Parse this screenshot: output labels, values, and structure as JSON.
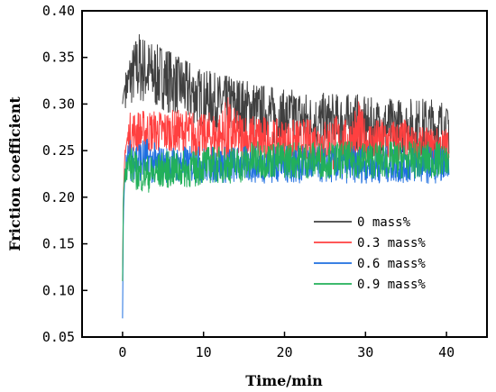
{
  "chart_data": {
    "type": "line",
    "xlabel": "Time/min",
    "ylabel": "Friction coefficient",
    "xlim": [
      -5,
      45
    ],
    "ylim": [
      0.05,
      0.4
    ],
    "xticks": [
      0,
      10,
      20,
      30,
      40
    ],
    "yticks": [
      0.05,
      0.1,
      0.15,
      0.2,
      0.25,
      0.3,
      0.35,
      0.4
    ],
    "xtick_labels": [
      "0",
      "10",
      "20",
      "30",
      "40"
    ],
    "ytick_labels": [
      "0.05",
      "0.10",
      "0.15",
      "0.20",
      "0.25",
      "0.30",
      "0.35",
      "0.40"
    ],
    "grid": false,
    "legend_position": "lower-right",
    "series": [
      {
        "name": "0 mass%",
        "color": "#404040",
        "x": [
          0,
          0.1,
          0.3,
          0.6,
          1,
          2,
          3,
          4,
          5,
          6,
          7,
          8,
          9,
          10,
          11,
          12,
          13,
          14,
          15,
          16,
          17,
          18,
          19,
          20,
          21,
          22,
          23,
          24,
          25,
          26,
          27,
          28,
          29,
          30,
          31,
          32,
          33,
          34,
          35,
          36,
          37,
          38,
          39,
          40.3
        ],
        "y": [
          0.3,
          0.31,
          0.32,
          0.32,
          0.33,
          0.34,
          0.335,
          0.33,
          0.33,
          0.325,
          0.32,
          0.315,
          0.31,
          0.305,
          0.305,
          0.3,
          0.3,
          0.3,
          0.295,
          0.295,
          0.29,
          0.29,
          0.285,
          0.285,
          0.285,
          0.285,
          0.28,
          0.28,
          0.28,
          0.28,
          0.28,
          0.28,
          0.28,
          0.275,
          0.275,
          0.275,
          0.275,
          0.275,
          0.275,
          0.275,
          0.275,
          0.275,
          0.275,
          0.275
        ],
        "range_low": [
          0.29,
          0.29,
          0.29,
          0.29,
          0.29,
          0.29,
          0.29,
          0.285,
          0.285,
          0.28,
          0.28,
          0.27,
          0.27,
          0.265,
          0.265,
          0.26,
          0.26,
          0.26,
          0.255,
          0.255,
          0.25,
          0.25,
          0.245,
          0.245,
          0.245,
          0.245,
          0.24,
          0.24,
          0.24,
          0.24,
          0.24,
          0.24,
          0.24,
          0.235,
          0.235,
          0.235,
          0.235,
          0.235,
          0.235,
          0.235,
          0.235,
          0.235,
          0.235,
          0.235
        ],
        "range_high": [
          0.31,
          0.33,
          0.33,
          0.34,
          0.35,
          0.38,
          0.37,
          0.365,
          0.36,
          0.355,
          0.35,
          0.345,
          0.34,
          0.335,
          0.335,
          0.33,
          0.33,
          0.33,
          0.325,
          0.325,
          0.32,
          0.32,
          0.315,
          0.315,
          0.315,
          0.315,
          0.31,
          0.315,
          0.315,
          0.31,
          0.31,
          0.31,
          0.31,
          0.31,
          0.31,
          0.31,
          0.31,
          0.31,
          0.31,
          0.31,
          0.31,
          0.31,
          0.31,
          0.29
        ]
      },
      {
        "name": "0.3 mass%",
        "color": "#ff4040",
        "x": [
          0,
          0.1,
          0.3,
          0.6,
          1,
          2,
          3,
          4,
          5,
          6,
          7,
          8,
          9,
          10,
          11,
          12,
          13,
          14,
          15,
          16,
          17,
          18,
          19,
          20,
          21,
          22,
          23,
          24,
          25,
          26,
          27,
          28,
          29,
          30,
          31,
          32,
          33,
          34,
          35,
          36,
          37,
          38,
          39,
          40.3
        ],
        "y": [
          0.11,
          0.2,
          0.25,
          0.26,
          0.27,
          0.27,
          0.27,
          0.27,
          0.27,
          0.27,
          0.27,
          0.27,
          0.265,
          0.265,
          0.265,
          0.265,
          0.265,
          0.265,
          0.265,
          0.26,
          0.26,
          0.26,
          0.26,
          0.26,
          0.26,
          0.26,
          0.26,
          0.26,
          0.26,
          0.26,
          0.26,
          0.26,
          0.26,
          0.26,
          0.26,
          0.26,
          0.26,
          0.26,
          0.26,
          0.255,
          0.255,
          0.255,
          0.255,
          0.255
        ],
        "range_low": [
          0.11,
          0.19,
          0.23,
          0.24,
          0.25,
          0.25,
          0.25,
          0.25,
          0.25,
          0.25,
          0.25,
          0.25,
          0.245,
          0.245,
          0.24,
          0.24,
          0.24,
          0.24,
          0.24,
          0.235,
          0.235,
          0.235,
          0.235,
          0.235,
          0.235,
          0.23,
          0.23,
          0.23,
          0.23,
          0.23,
          0.23,
          0.23,
          0.23,
          0.23,
          0.23,
          0.23,
          0.23,
          0.23,
          0.23,
          0.23,
          0.23,
          0.23,
          0.23,
          0.23
        ],
        "range_high": [
          0.12,
          0.23,
          0.27,
          0.28,
          0.3,
          0.3,
          0.3,
          0.3,
          0.3,
          0.3,
          0.3,
          0.3,
          0.3,
          0.295,
          0.3,
          0.3,
          0.32,
          0.3,
          0.3,
          0.295,
          0.3,
          0.29,
          0.29,
          0.29,
          0.29,
          0.29,
          0.29,
          0.29,
          0.29,
          0.3,
          0.29,
          0.29,
          0.32,
          0.29,
          0.29,
          0.29,
          0.29,
          0.29,
          0.29,
          0.28,
          0.28,
          0.28,
          0.28,
          0.27
        ]
      },
      {
        "name": "0.6 mass%",
        "color": "#1f6fe0",
        "x": [
          0,
          0.1,
          0.3,
          0.6,
          1,
          2,
          3,
          4,
          5,
          6,
          7,
          8,
          9,
          10,
          11,
          12,
          13,
          14,
          15,
          16,
          17,
          18,
          19,
          20,
          21,
          22,
          23,
          24,
          25,
          26,
          27,
          28,
          29,
          30,
          31,
          32,
          33,
          34,
          35,
          36,
          37,
          38,
          39,
          40.3
        ],
        "y": [
          0.07,
          0.18,
          0.23,
          0.24,
          0.24,
          0.24,
          0.24,
          0.235,
          0.235,
          0.235,
          0.235,
          0.235,
          0.235,
          0.235,
          0.235,
          0.235,
          0.235,
          0.235,
          0.235,
          0.235,
          0.235,
          0.235,
          0.235,
          0.235,
          0.235,
          0.235,
          0.235,
          0.235,
          0.235,
          0.235,
          0.235,
          0.235,
          0.235,
          0.235,
          0.235,
          0.235,
          0.235,
          0.235,
          0.235,
          0.235,
          0.235,
          0.235,
          0.235,
          0.235
        ],
        "range_low": [
          0.07,
          0.16,
          0.21,
          0.22,
          0.21,
          0.21,
          0.21,
          0.21,
          0.21,
          0.21,
          0.21,
          0.21,
          0.21,
          0.21,
          0.21,
          0.21,
          0.21,
          0.21,
          0.21,
          0.21,
          0.21,
          0.21,
          0.21,
          0.21,
          0.21,
          0.21,
          0.21,
          0.21,
          0.21,
          0.21,
          0.21,
          0.21,
          0.21,
          0.21,
          0.21,
          0.21,
          0.21,
          0.21,
          0.21,
          0.21,
          0.21,
          0.21,
          0.21,
          0.22
        ],
        "range_high": [
          0.08,
          0.22,
          0.25,
          0.26,
          0.265,
          0.265,
          0.265,
          0.265,
          0.26,
          0.26,
          0.26,
          0.26,
          0.26,
          0.26,
          0.26,
          0.26,
          0.26,
          0.26,
          0.26,
          0.26,
          0.26,
          0.26,
          0.26,
          0.26,
          0.26,
          0.26,
          0.26,
          0.26,
          0.26,
          0.26,
          0.26,
          0.26,
          0.26,
          0.26,
          0.26,
          0.26,
          0.26,
          0.26,
          0.26,
          0.26,
          0.26,
          0.26,
          0.26,
          0.24
        ]
      },
      {
        "name": "0.9 mass%",
        "color": "#22b05a",
        "x": [
          0,
          0.1,
          0.3,
          0.6,
          1,
          2,
          3,
          4,
          5,
          6,
          7,
          8,
          9,
          10,
          11,
          12,
          13,
          14,
          15,
          16,
          17,
          18,
          19,
          20,
          21,
          22,
          23,
          24,
          25,
          26,
          27,
          28,
          29,
          30,
          31,
          32,
          33,
          34,
          35,
          36,
          37,
          38,
          39,
          40.3
        ],
        "y": [
          0.11,
          0.2,
          0.23,
          0.235,
          0.235,
          0.225,
          0.225,
          0.225,
          0.23,
          0.23,
          0.23,
          0.23,
          0.23,
          0.235,
          0.235,
          0.235,
          0.235,
          0.235,
          0.235,
          0.24,
          0.24,
          0.24,
          0.24,
          0.24,
          0.24,
          0.24,
          0.24,
          0.24,
          0.24,
          0.24,
          0.24,
          0.24,
          0.24,
          0.24,
          0.24,
          0.24,
          0.24,
          0.24,
          0.24,
          0.24,
          0.24,
          0.24,
          0.24,
          0.24
        ],
        "range_low": [
          0.11,
          0.19,
          0.21,
          0.215,
          0.21,
          0.2,
          0.2,
          0.205,
          0.21,
          0.21,
          0.21,
          0.21,
          0.21,
          0.215,
          0.215,
          0.215,
          0.215,
          0.215,
          0.215,
          0.22,
          0.22,
          0.22,
          0.22,
          0.22,
          0.22,
          0.22,
          0.22,
          0.22,
          0.22,
          0.22,
          0.22,
          0.22,
          0.22,
          0.22,
          0.22,
          0.22,
          0.22,
          0.22,
          0.22,
          0.22,
          0.22,
          0.22,
          0.22,
          0.22
        ],
        "range_high": [
          0.12,
          0.22,
          0.25,
          0.255,
          0.255,
          0.25,
          0.25,
          0.25,
          0.255,
          0.255,
          0.255,
          0.255,
          0.255,
          0.26,
          0.26,
          0.26,
          0.26,
          0.26,
          0.26,
          0.265,
          0.265,
          0.265,
          0.265,
          0.265,
          0.265,
          0.265,
          0.265,
          0.265,
          0.265,
          0.265,
          0.265,
          0.265,
          0.265,
          0.265,
          0.265,
          0.265,
          0.265,
          0.265,
          0.265,
          0.265,
          0.265,
          0.265,
          0.265,
          0.25
        ]
      }
    ]
  }
}
